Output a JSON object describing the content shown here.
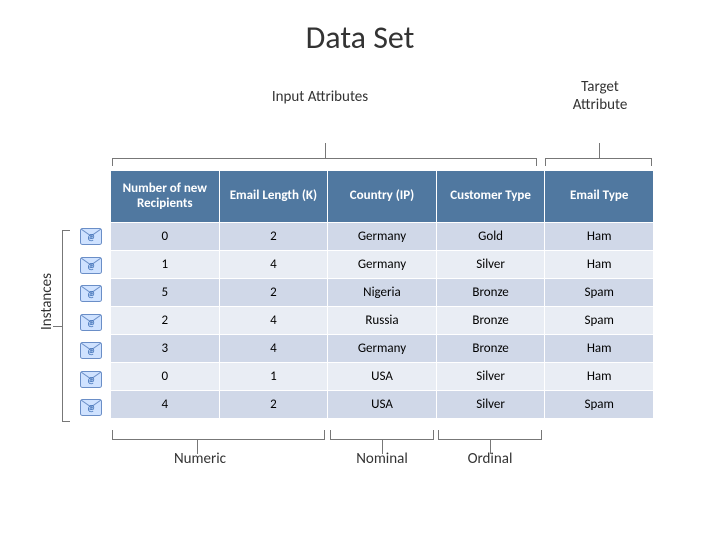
{
  "title": "Data Set",
  "labels": {
    "input_attributes": "Input Attributes",
    "target_attribute": "Target Attribute",
    "instances": "Instances",
    "numeric": "Numeric",
    "nominal": "Nominal",
    "ordinal": "Ordinal"
  },
  "table": {
    "header_bg": "#5078a0",
    "header_fg": "#ffffff",
    "row_odd_bg": "#d0d8e8",
    "row_even_bg": "#e9edf4",
    "columns": [
      "Number of new Recipients",
      "Email Length (K)",
      "Country (IP)",
      "Customer Type",
      "Email Type"
    ],
    "rows": [
      [
        "0",
        "2",
        "Germany",
        "Gold",
        "Ham"
      ],
      [
        "1",
        "4",
        "Germany",
        "Silver",
        "Ham"
      ],
      [
        "5",
        "2",
        "Nigeria",
        "Bronze",
        "Spam"
      ],
      [
        "2",
        "4",
        "Russia",
        "Bronze",
        "Spam"
      ],
      [
        "3",
        "4",
        "Germany",
        "Bronze",
        "Ham"
      ],
      [
        "0",
        "1",
        "USA",
        "Silver",
        "Ham"
      ],
      [
        "4",
        "2",
        "USA",
        "Silver",
        "Spam"
      ]
    ]
  },
  "icon": {
    "name": "email-icon",
    "count": 7,
    "fill": "#cfe2ff",
    "stroke": "#6a8ec7",
    "at_color": "#3a6db5"
  }
}
